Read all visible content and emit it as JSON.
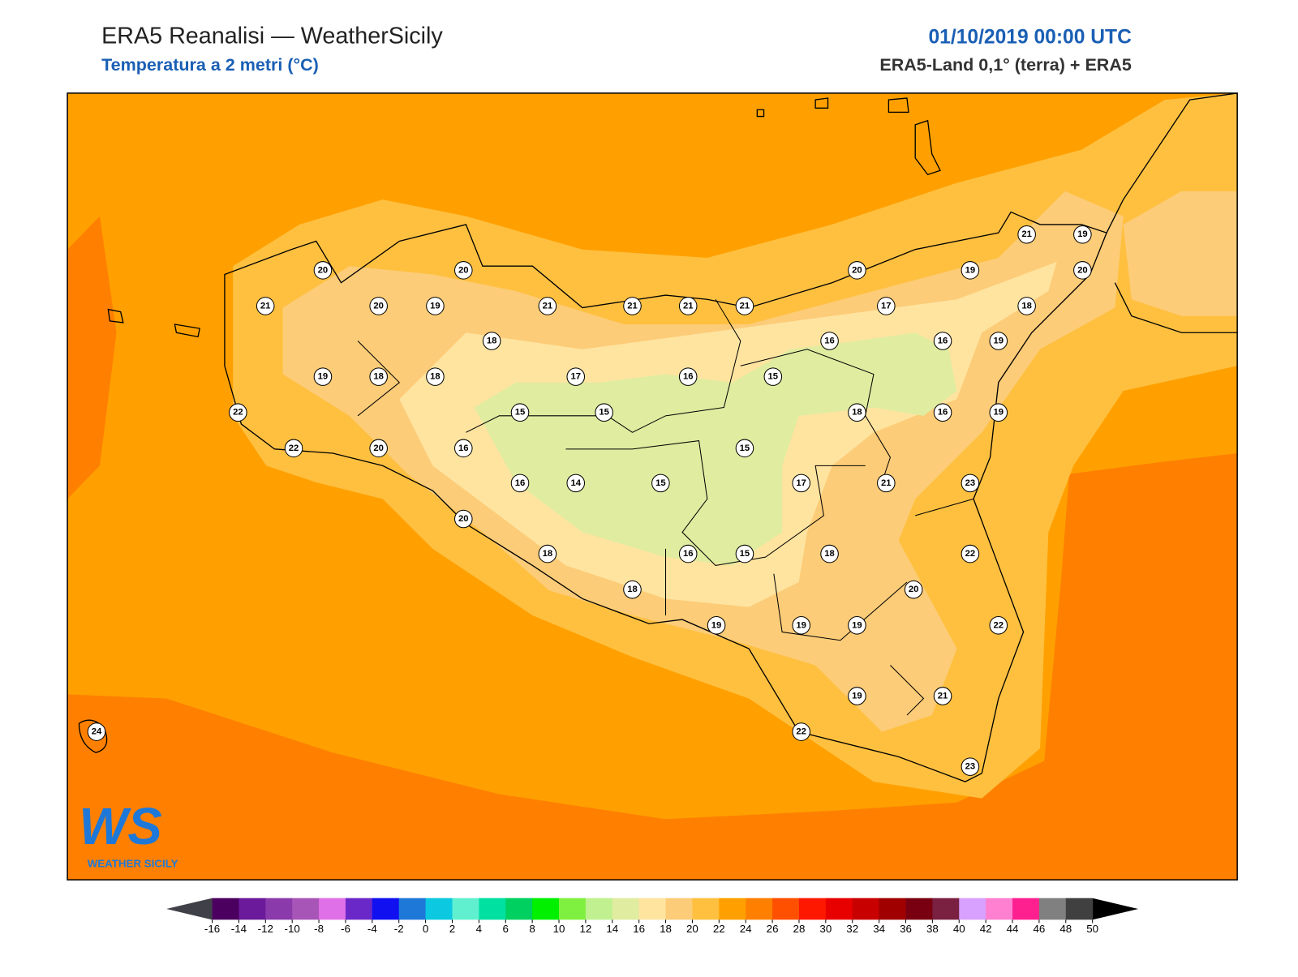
{
  "header": {
    "title": "ERA5 Reanalisi — WeatherSicily",
    "subtitle": "Temperatura a 2 metri (°C)",
    "datetime": "01/10/2019 00:00 UTC",
    "source": "ERA5-Land 0,1° (terra) + ERA5"
  },
  "logo": {
    "mark": "WS",
    "name": "WEATHER SICILY"
  },
  "stations": [
    20,
    20,
    21,
    20,
    19,
    21,
    21,
    21,
    21,
    20,
    19,
    21,
    19,
    20,
    17,
    18,
    18,
    16,
    16,
    19,
    19,
    18,
    18,
    17,
    16,
    15,
    22,
    15,
    15,
    18,
    16,
    19,
    22,
    20,
    16,
    15,
    16,
    14,
    15,
    17,
    21,
    23,
    20,
    18,
    16,
    15,
    18,
    22,
    20,
    18,
    19,
    19,
    19,
    22,
    19,
    21,
    22,
    24,
    23
  ],
  "colorbar": {
    "ticks": [
      -16,
      -14,
      -12,
      -10,
      -8,
      -6,
      -4,
      -2,
      0,
      2,
      4,
      6,
      8,
      10,
      12,
      14,
      16,
      18,
      20,
      22,
      24,
      26,
      28,
      30,
      32,
      34,
      36,
      38,
      40,
      42,
      44,
      46,
      48,
      50
    ],
    "colors": [
      "#4b0060",
      "#6a1a9a",
      "#8a3aaa",
      "#a855b8",
      "#e070e8",
      "#6a28c8",
      "#1010f0",
      "#1e78d8",
      "#0cc8e0",
      "#60f0d0",
      "#00e0a0",
      "#00d060",
      "#00f000",
      "#80f040",
      "#c0f090",
      "#e0eca0",
      "#ffe4a0",
      "#fccc78",
      "#ffc040",
      "#ffa000",
      "#ff8000",
      "#ff5000",
      "#ff1800",
      "#e80000",
      "#c80000",
      "#a00000",
      "#780010",
      "#7a2040",
      "#d8a0ff",
      "#ff80d0",
      "#ff2090",
      "#808080",
      "#404040"
    ],
    "under_color": "#404048",
    "over_color": "#000000"
  }
}
